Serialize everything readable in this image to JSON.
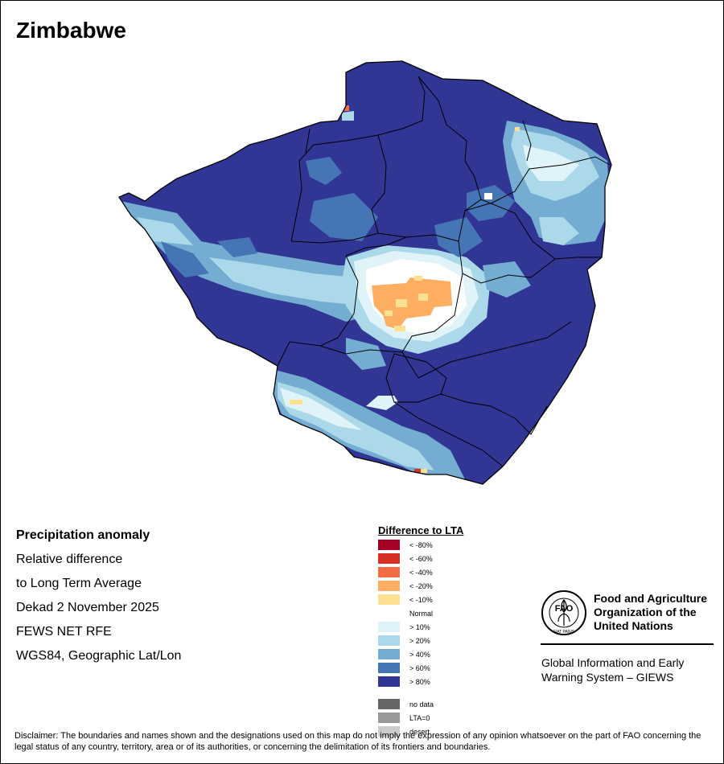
{
  "map": {
    "title": "Zimbabwe",
    "info_heading": "Precipitation anomaly",
    "info_lines": [
      "Relative difference",
      "to Long Term Average",
      "Dekad 2 November 2025",
      "FEWS NET RFE",
      "WGS84, Geographic Lat/Lon"
    ]
  },
  "legend": {
    "title": "Difference to LTA",
    "classes": [
      {
        "label": "< -80%",
        "color": "#a50026"
      },
      {
        "label": "< -60%",
        "color": "#d73027"
      },
      {
        "label": "< -40%",
        "color": "#f46d43"
      },
      {
        "label": "< -20%",
        "color": "#fdae61"
      },
      {
        "label": "< -10%",
        "color": "#fee090"
      },
      {
        "label": "Normal",
        "color": "#ffffff"
      },
      {
        "label": "> 10%",
        "color": "#e0f3f8"
      },
      {
        "label": "> 20%",
        "color": "#abd9e9"
      },
      {
        "label": "> 40%",
        "color": "#74add1"
      },
      {
        "label": "> 60%",
        "color": "#4575b4"
      },
      {
        "label": "> 80%",
        "color": "#313695"
      }
    ],
    "extra": [
      {
        "label": "no data",
        "color": "#666666"
      },
      {
        "label": "LTA=0",
        "color": "#999999"
      },
      {
        "label": "desert",
        "color": "#cccccc"
      }
    ]
  },
  "logo": {
    "emblem_text": "FAO",
    "motto": "FIAT PANIS",
    "org_line1": "Food and Agriculture",
    "org_line2": "Organization of the",
    "org_line3": "United Nations",
    "system_line1": "Global Information and Early",
    "system_line2": "Warning System – GIEWS"
  },
  "disclaimer": "Disclaimer: The boundaries and names shown and the designations used on this map do not imply the expression of any opinion whatsoever on the part of FAO concerning the legal status of any country, territory, area or of its authorities, or concerning the delimitation of its frontiers and boundaries."
}
